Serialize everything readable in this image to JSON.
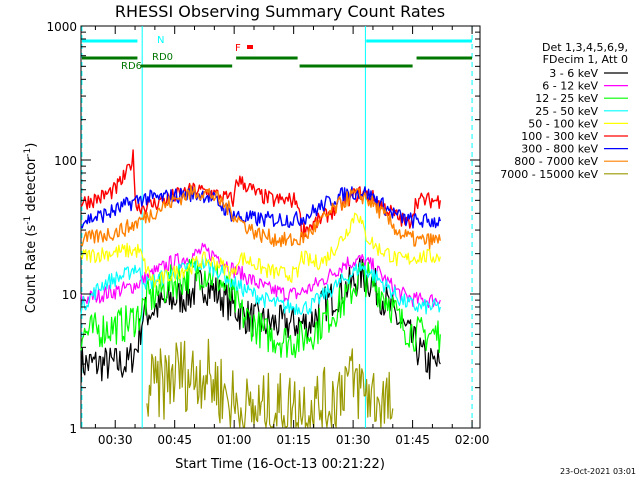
{
  "chart_data": {
    "type": "line",
    "title": "RHESSI Observing Summary Count Rates",
    "xlabel": "Start Time (16-Oct-13 00:21:22)",
    "ylabel_main": "Count Rate (s",
    "ylabel_sup1": "-1",
    "ylabel_mid": " detector",
    "ylabel_sup2": "-1",
    "ylabel_end": ")",
    "yscale": "log",
    "ylim": [
      1,
      1000
    ],
    "xlim_minutes": [
      21.37,
      122
    ],
    "x_ticks": [
      {
        "label": "00:30",
        "m": 30
      },
      {
        "label": "00:45",
        "m": 45
      },
      {
        "label": "01:00",
        "m": 60
      },
      {
        "label": "01:15",
        "m": 75
      },
      {
        "label": "01:30",
        "m": 90
      },
      {
        "label": "01:45",
        "m": 105
      },
      {
        "label": "02:00",
        "m": 120
      }
    ],
    "y_ticks": [
      {
        "label": "1",
        "v": 1
      },
      {
        "label": "10",
        "v": 10
      },
      {
        "label": "100",
        "v": 100
      },
      {
        "label": "1000",
        "v": 1000
      }
    ],
    "legend_header": [
      "Det 1,3,4,5,6,9,",
      "FDecim 1, Att 0"
    ],
    "series": [
      {
        "name": "3 - 6 keV",
        "color": "#000000",
        "points": [
          [
            21.4,
            3
          ],
          [
            26,
            3
          ],
          [
            33,
            3
          ],
          [
            35.5,
            4
          ],
          [
            37,
            7
          ],
          [
            44,
            9
          ],
          [
            49,
            10
          ],
          [
            52,
            12
          ],
          [
            56,
            10
          ],
          [
            60,
            8
          ],
          [
            62,
            7
          ],
          [
            68,
            6
          ],
          [
            73,
            6
          ],
          [
            76,
            6
          ],
          [
            79,
            6
          ],
          [
            82,
            8
          ],
          [
            86,
            10
          ],
          [
            90,
            12
          ],
          [
            92,
            14
          ],
          [
            95,
            12
          ],
          [
            99,
            8
          ],
          [
            102,
            6
          ],
          [
            106,
            4
          ],
          [
            109,
            3
          ],
          [
            112,
            3
          ]
        ]
      },
      {
        "name": "6 - 12 keV",
        "color": "#ff00ff",
        "points": [
          [
            21.4,
            9
          ],
          [
            27,
            10
          ],
          [
            33,
            11
          ],
          [
            36,
            12
          ],
          [
            39,
            14
          ],
          [
            44,
            17
          ],
          [
            49,
            19
          ],
          [
            52,
            21
          ],
          [
            56,
            19
          ],
          [
            60,
            15
          ],
          [
            62,
            14
          ],
          [
            68,
            11
          ],
          [
            73,
            10
          ],
          [
            76,
            10
          ],
          [
            79,
            11
          ],
          [
            83,
            13
          ],
          [
            88,
            17
          ],
          [
            92,
            18
          ],
          [
            95,
            16
          ],
          [
            99,
            12
          ],
          [
            102,
            10
          ],
          [
            106,
            9
          ],
          [
            109,
            9
          ],
          [
            112,
            9
          ]
        ]
      },
      {
        "name": "12 - 25 keV",
        "color": "#00ff00",
        "points": [
          [
            21.4,
            5
          ],
          [
            27,
            5.5
          ],
          [
            33,
            6
          ],
          [
            36,
            7
          ],
          [
            38,
            9
          ],
          [
            44,
            12
          ],
          [
            49,
            14
          ],
          [
            52,
            15
          ],
          [
            56,
            13
          ],
          [
            60,
            9
          ],
          [
            62,
            7
          ],
          [
            68,
            5
          ],
          [
            73,
            4.5
          ],
          [
            76,
            4.5
          ],
          [
            79,
            5
          ],
          [
            83,
            6.5
          ],
          [
            88,
            9
          ],
          [
            92,
            14
          ],
          [
            95,
            12
          ],
          [
            99,
            9
          ],
          [
            102,
            6
          ],
          [
            106,
            5
          ],
          [
            109,
            5
          ],
          [
            112,
            5
          ]
        ]
      },
      {
        "name": "25 - 50 keV",
        "color": "#00ffff",
        "points": [
          [
            21.4,
            8
          ],
          [
            27,
            12
          ],
          [
            33,
            14
          ],
          [
            35,
            16
          ],
          [
            38,
            12
          ],
          [
            44,
            14
          ],
          [
            49,
            16
          ],
          [
            52,
            17
          ],
          [
            56,
            15
          ],
          [
            60,
            12
          ],
          [
            62,
            11
          ],
          [
            68,
            9
          ],
          [
            73,
            8
          ],
          [
            76,
            8
          ],
          [
            79,
            8
          ],
          [
            83,
            10
          ],
          [
            88,
            13
          ],
          [
            92,
            16
          ],
          [
            95,
            14
          ],
          [
            99,
            11
          ],
          [
            102,
            9
          ],
          [
            106,
            8
          ],
          [
            109,
            8
          ],
          [
            112,
            8
          ]
        ]
      },
      {
        "name": "50 - 100 keV",
        "color": "#ffff00",
        "points": [
          [
            21.4,
            19
          ],
          [
            27,
            20
          ],
          [
            33,
            21
          ],
          [
            36,
            21
          ],
          [
            38,
            15
          ],
          [
            40,
            12
          ],
          [
            44,
            14
          ],
          [
            49,
            16
          ],
          [
            52,
            18
          ],
          [
            56,
            17
          ],
          [
            60,
            14
          ],
          [
            61,
            19
          ],
          [
            65,
            17
          ],
          [
            68,
            15
          ],
          [
            73,
            14
          ],
          [
            76,
            14
          ],
          [
            77,
            19
          ],
          [
            80,
            17
          ],
          [
            83,
            18
          ],
          [
            88,
            28
          ],
          [
            91,
            42
          ],
          [
            93,
            28
          ],
          [
            96,
            22
          ],
          [
            99,
            20
          ],
          [
            101,
            18
          ],
          [
            103,
            18
          ],
          [
            106,
            19
          ],
          [
            109,
            19
          ],
          [
            112,
            19
          ]
        ]
      },
      {
        "name": "100 - 300 keV",
        "color": "#ff0000",
        "points": [
          [
            21.4,
            48
          ],
          [
            26,
            52
          ],
          [
            30,
            60
          ],
          [
            33,
            80
          ],
          [
            34.5,
            105
          ],
          [
            35.3,
            45
          ],
          [
            38,
            45
          ],
          [
            42,
            50
          ],
          [
            46,
            55
          ],
          [
            50,
            60
          ],
          [
            54,
            57
          ],
          [
            58,
            52
          ],
          [
            60,
            50
          ],
          [
            60.5,
            72
          ],
          [
            63,
            65
          ],
          [
            66,
            55
          ],
          [
            70,
            50
          ],
          [
            76,
            50
          ],
          [
            77,
            30
          ],
          [
            80,
            33
          ],
          [
            85,
            42
          ],
          [
            89,
            52
          ],
          [
            92,
            57
          ],
          [
            95,
            52
          ],
          [
            98,
            44
          ],
          [
            101,
            38
          ],
          [
            104,
            33
          ],
          [
            106,
            50
          ],
          [
            109,
            50
          ],
          [
            112,
            50
          ]
        ]
      },
      {
        "name": "300 - 800 keV",
        "color": "#0000ff",
        "points": [
          [
            21.4,
            35
          ],
          [
            26,
            38
          ],
          [
            30,
            42
          ],
          [
            34,
            48
          ],
          [
            37,
            52
          ],
          [
            41,
            52
          ],
          [
            45,
            54
          ],
          [
            49,
            56
          ],
          [
            53,
            55
          ],
          [
            56,
            48
          ],
          [
            59,
            40
          ],
          [
            62,
            37
          ],
          [
            67,
            36
          ],
          [
            73,
            36
          ],
          [
            76,
            36
          ],
          [
            78,
            38
          ],
          [
            82,
            45
          ],
          [
            86,
            53
          ],
          [
            90,
            58
          ],
          [
            93,
            57
          ],
          [
            96,
            50
          ],
          [
            99,
            42
          ],
          [
            103,
            36
          ],
          [
            106,
            35
          ],
          [
            109,
            35
          ],
          [
            112,
            35
          ]
        ]
      },
      {
        "name": "800 - 7000 keV",
        "color": "#ff8000",
        "points": [
          [
            21.4,
            25
          ],
          [
            26,
            27
          ],
          [
            30,
            29
          ],
          [
            34,
            32
          ],
          [
            38,
            38
          ],
          [
            42,
            45
          ],
          [
            46,
            52
          ],
          [
            50,
            58
          ],
          [
            54,
            56
          ],
          [
            58,
            45
          ],
          [
            62,
            34
          ],
          [
            66,
            28
          ],
          [
            70,
            26
          ],
          [
            73,
            25
          ],
          [
            76,
            25
          ],
          [
            78,
            27
          ],
          [
            82,
            35
          ],
          [
            86,
            45
          ],
          [
            90,
            55
          ],
          [
            93,
            53
          ],
          [
            96,
            44
          ],
          [
            99,
            35
          ],
          [
            102,
            28
          ],
          [
            106,
            25
          ],
          [
            109,
            25
          ],
          [
            112,
            25
          ]
        ]
      },
      {
        "name": "7000 - 15000 keV",
        "color": "#999900",
        "points": [
          [
            38,
            1.9
          ],
          [
            42,
            2.1
          ],
          [
            46,
            2.7
          ],
          [
            49,
            2.4
          ],
          [
            52,
            2.7
          ],
          [
            55,
            2.2
          ],
          [
            57,
            1.9
          ],
          [
            62,
            1.3
          ],
          [
            84,
            1.5
          ],
          [
            86,
            1.8
          ],
          [
            88,
            2.4
          ],
          [
            91,
            2.1
          ],
          [
            94,
            1.8
          ],
          [
            97,
            1.6
          ],
          [
            100,
            1.4
          ]
        ]
      }
    ],
    "annotations": {
      "markers": [
        {
          "label": "N",
          "m": 36.8,
          "color": "#00ffff"
        },
        {
          "label": "F",
          "m": 62.6,
          "color": "#ff0000"
        },
        {
          "label": "RD0",
          "m": 43.5,
          "color": "#007700"
        },
        {
          "label": "RD6",
          "m": 31.5,
          "color": "#007700"
        }
      ],
      "timestamp": "23-Oct-2021 03:01"
    },
    "grid": false,
    "legend_placement": "right"
  }
}
